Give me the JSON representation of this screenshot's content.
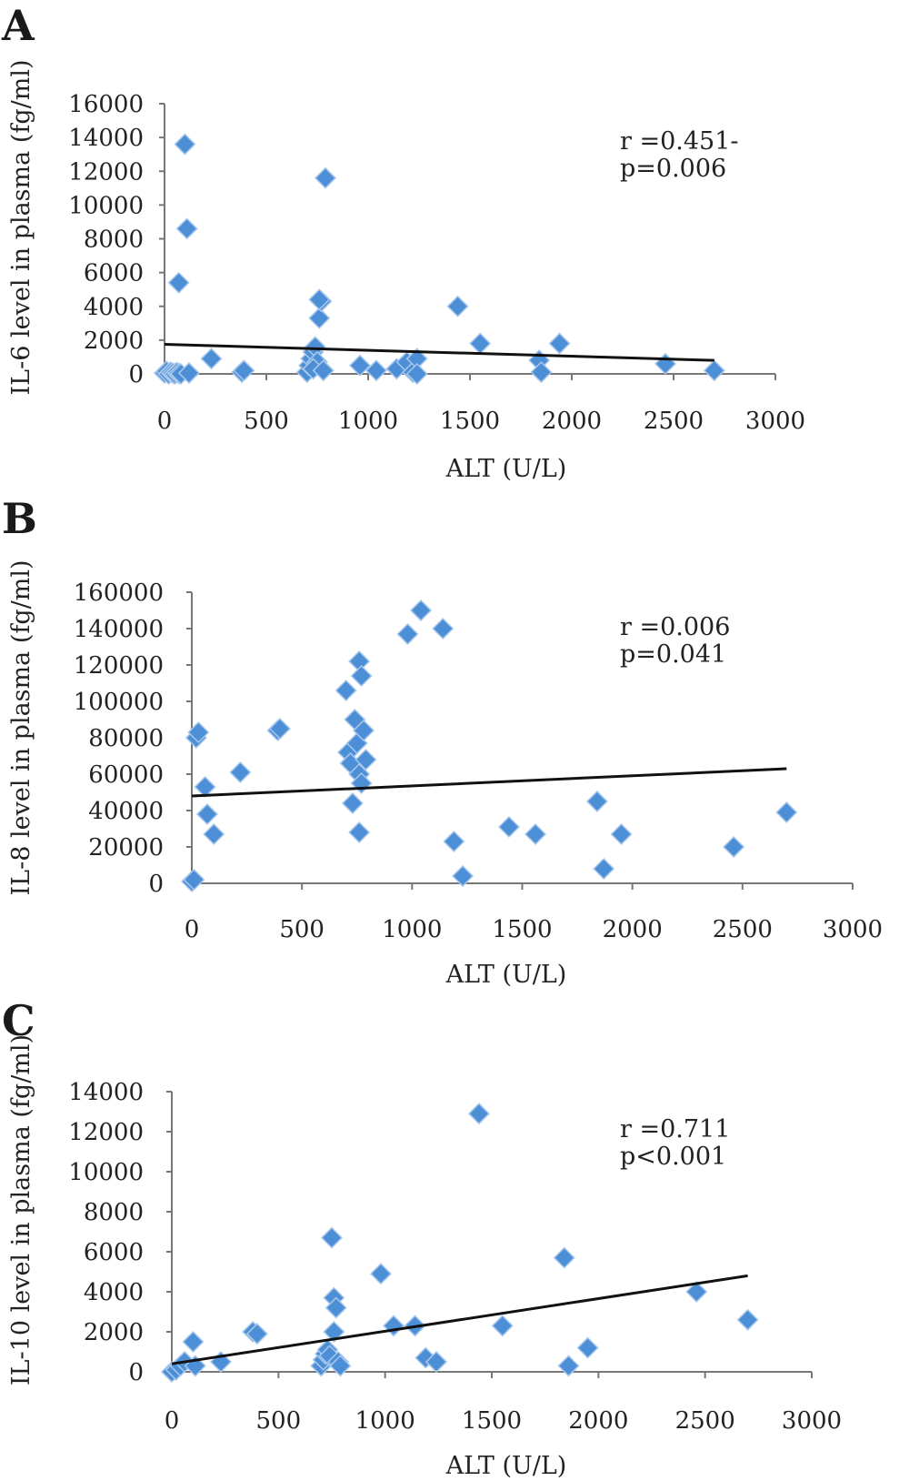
{
  "chart_data": [
    {
      "type": "scatter",
      "panel": "A",
      "title": "",
      "xlabel": "ALT (U/L)",
      "ylabel": "IL-6 level in plasma (fg/ml)",
      "xlim": [
        0,
        3000
      ],
      "ylim": [
        0,
        16000
      ],
      "x_ticks": [
        0,
        500,
        1000,
        1500,
        2000,
        2500,
        3000
      ],
      "y_ticks": [
        0,
        2000,
        4000,
        6000,
        8000,
        10000,
        12000,
        14000,
        16000
      ],
      "annotation": [
        "r =0.451-",
        "p=0.006"
      ],
      "grid": false,
      "marker_color": "#4d8fd6",
      "trendline": {
        "x": [
          0,
          2700
        ],
        "y": [
          1750,
          800
        ]
      },
      "points": {
        "x": [
          0,
          10,
          20,
          30,
          40,
          50,
          60,
          70,
          80,
          100,
          110,
          120,
          70,
          230,
          380,
          390,
          700,
          710,
          720,
          730,
          740,
          750,
          760,
          770,
          730,
          780,
          760,
          790,
          960,
          1040,
          1140,
          1190,
          1220,
          1240,
          1240,
          1440,
          1550,
          1840,
          1850,
          1940,
          2460,
          2700
        ],
        "y": [
          50,
          150,
          0,
          100,
          50,
          0,
          80,
          30,
          0,
          13600,
          8600,
          50,
          5400,
          900,
          100,
          200,
          100,
          500,
          900,
          1300,
          1600,
          700,
          3300,
          4300,
          300,
          200,
          4400,
          11600,
          500,
          200,
          300,
          700,
          100,
          900,
          0,
          4000,
          1800,
          800,
          100,
          1800,
          600,
          200
        ]
      }
    },
    {
      "type": "scatter",
      "panel": "B",
      "title": "",
      "xlabel": "ALT (U/L)",
      "ylabel": "IL-8 level in plasma (fg/ml)",
      "xlim": [
        0,
        3000
      ],
      "ylim": [
        0,
        160000
      ],
      "x_ticks": [
        0,
        500,
        1000,
        1500,
        2000,
        2500,
        3000
      ],
      "y_ticks": [
        0,
        20000,
        40000,
        60000,
        80000,
        100000,
        120000,
        140000,
        160000
      ],
      "annotation": [
        "r =0.006",
        "p=0.041"
      ],
      "grid": false,
      "marker_color": "#4d8fd6",
      "trendline": {
        "x": [
          0,
          2700
        ],
        "y": [
          48000,
          63000
        ]
      },
      "points": {
        "x": [
          0,
          10,
          20,
          30,
          60,
          70,
          100,
          220,
          390,
          400,
          700,
          710,
          720,
          730,
          740,
          750,
          760,
          760,
          770,
          780,
          790,
          760,
          770,
          980,
          1040,
          1140,
          1190,
          1230,
          1440,
          1560,
          1840,
          1870,
          1950,
          2460,
          2700
        ],
        "y": [
          1000,
          2000,
          80000,
          83000,
          53000,
          38000,
          27000,
          61000,
          84000,
          85000,
          106000,
          72000,
          66000,
          44000,
          90000,
          77000,
          28000,
          122000,
          114000,
          84000,
          68000,
          60000,
          55000,
          137000,
          150000,
          140000,
          23000,
          4000,
          31000,
          27000,
          45000,
          8000,
          27000,
          20000,
          39000
        ]
      }
    },
    {
      "type": "scatter",
      "panel": "C",
      "title": "",
      "xlabel": "ALT (U/L)",
      "ylabel": "IL-10 level in plasma (fg/ml)",
      "xlim": [
        0,
        3000
      ],
      "ylim": [
        0,
        14000
      ],
      "x_ticks": [
        0,
        500,
        1000,
        1500,
        2000,
        2500,
        3000
      ],
      "y_ticks": [
        0,
        2000,
        4000,
        6000,
        8000,
        10000,
        12000,
        14000
      ],
      "annotation": [
        "r =0.711",
        "p<0.001"
      ],
      "grid": false,
      "marker_color": "#4d8fd6",
      "trendline": {
        "x": [
          0,
          2700
        ],
        "y": [
          400,
          4800
        ]
      },
      "points": {
        "x": [
          0,
          20,
          40,
          60,
          100,
          110,
          230,
          380,
          400,
          700,
          710,
          720,
          730,
          740,
          750,
          760,
          760,
          770,
          780,
          790,
          980,
          1040,
          1140,
          1190,
          1240,
          1440,
          1550,
          1840,
          1860,
          1950,
          2460,
          2700
        ],
        "y": [
          0,
          100,
          300,
          500,
          1500,
          300,
          500,
          2000,
          1900,
          300,
          600,
          900,
          1100,
          800,
          6700,
          2000,
          3700,
          3200,
          500,
          300,
          4900,
          2300,
          2300,
          700,
          500,
          12900,
          2300,
          5700,
          300,
          1200,
          4000,
          2600
        ]
      }
    }
  ]
}
